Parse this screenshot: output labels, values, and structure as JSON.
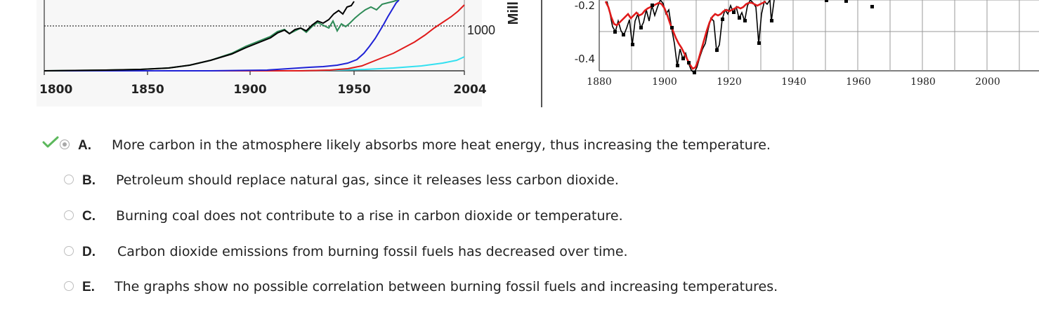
{
  "left_chart": {
    "x_ticks": [
      "1800",
      "1850",
      "1900",
      "1950",
      "2004"
    ],
    "y_tick_visible": "1000",
    "y_axis_label_fragment": "Mill",
    "colors": {
      "black": "#000000",
      "green": "#2e8b57",
      "blue": "#1f22d6",
      "red": "#e01b1b",
      "cyan": "#33e0f0"
    }
  },
  "right_chart": {
    "x_ticks": [
      "1880",
      "1900",
      "1920",
      "1940",
      "1960",
      "1980",
      "2000"
    ],
    "y_ticks": [
      "-0.2",
      "-0.4"
    ],
    "colors": {
      "annual": "#000000",
      "smoothed": "#e01b1b",
      "grid": "#9a9a9a"
    }
  },
  "question": {
    "correct_icon": "checkmark-icon",
    "correct_color": "#5cb85c",
    "options": [
      {
        "letter": "A.",
        "text": "More carbon in the atmosphere likely absorbs more heat energy, thus increasing the temperature.",
        "selected": true
      },
      {
        "letter": "B.",
        "text": "Petroleum should replace natural gas, since it releases less carbon dioxide.",
        "selected": false
      },
      {
        "letter": "C.",
        "text": "Burning coal does not contribute to a rise in carbon dioxide or temperature.",
        "selected": false
      },
      {
        "letter": "D.",
        "text": "Carbon dioxide emissions from burning fossil fuels has decreased over time.",
        "selected": false
      },
      {
        "letter": "E.",
        "text": "The graphs show no possible correlation between burning fossil fuels and increasing temperatures.",
        "selected": false
      }
    ]
  }
}
